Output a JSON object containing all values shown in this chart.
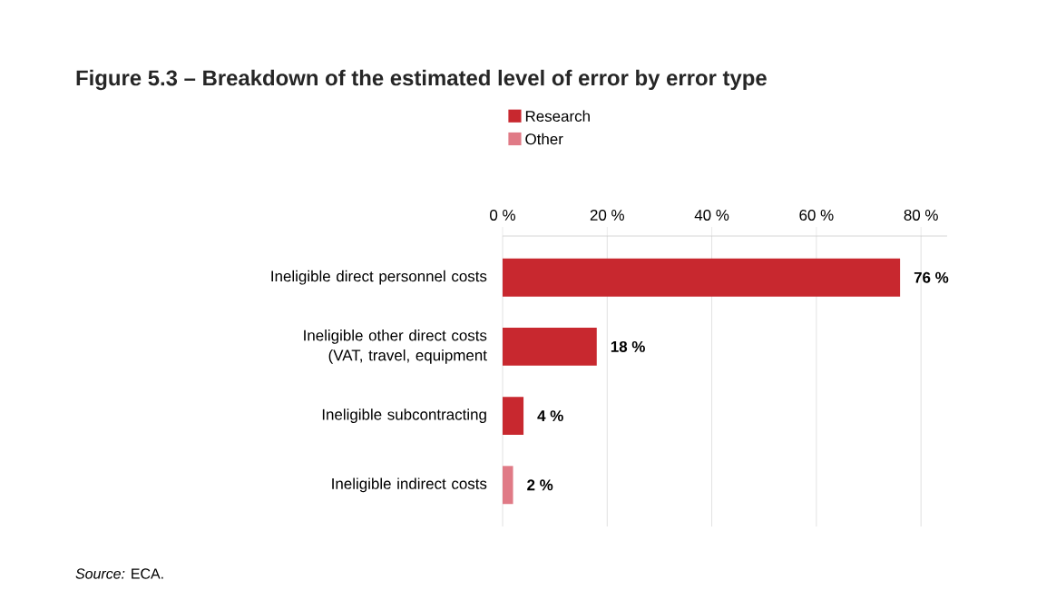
{
  "chart_data": {
    "type": "bar",
    "orientation": "horizontal",
    "title": "Figure 5.3 – Breakdown of the estimated level of error by error type",
    "categories": [
      "Ineligible direct personnel costs",
      "Ineligible other direct costs (VAT, travel, equipment",
      "Ineligible subcontracting",
      "Ineligible indirect costs"
    ],
    "series": [
      {
        "name": "Research",
        "color": "#c8282f",
        "values": [
          76,
          18,
          4,
          null
        ],
        "value_labels": [
          "76 %",
          "18 %",
          "4 %",
          null
        ]
      },
      {
        "name": "Other",
        "color": "#e07a86",
        "values": [
          null,
          null,
          null,
          2
        ],
        "value_labels": [
          null,
          null,
          null,
          "2 %"
        ]
      }
    ],
    "xlim": [
      0,
      85
    ],
    "xticks": [
      {
        "value": 0,
        "label": "0 %"
      },
      {
        "value": 20,
        "label": "20 %"
      },
      {
        "value": 40,
        "label": "40 %"
      },
      {
        "value": 60,
        "label": "60 %"
      },
      {
        "value": 80,
        "label": "80 %"
      }
    ],
    "grid": "x",
    "legend": "top left",
    "annotations": [
      "*Source:* ECA."
    ]
  }
}
